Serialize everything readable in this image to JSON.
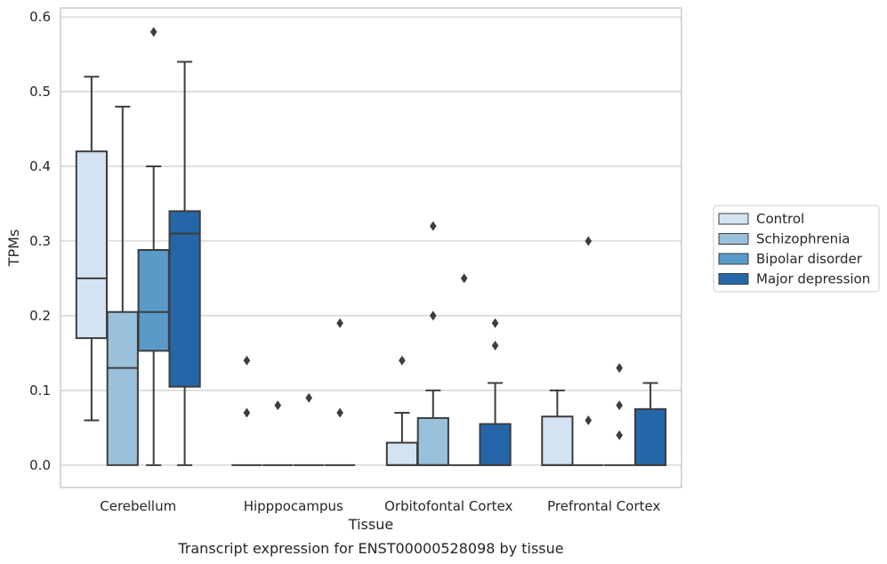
{
  "chart_data": {
    "type": "box",
    "xlabel": "Tissue",
    "ylabel": "TPMs",
    "caption": "Transcript expression for ENST00000528098 by tissue",
    "ylim": [
      -0.03,
      0.612
    ],
    "yticks": [
      "0.0",
      "0.1",
      "0.2",
      "0.3",
      "0.4",
      "0.5",
      "0.6"
    ],
    "grid": "horizontal",
    "legend_position": "right",
    "categories": [
      "Cerebellum",
      "Hipppocampus",
      "Orbitofontal Cortex",
      "Prefrontal Cortex"
    ],
    "series": [
      {
        "name": "Control",
        "color": "#d3e3f2",
        "boxes": [
          {
            "whislo": 0.06,
            "q1": 0.17,
            "med": 0.25,
            "q3": 0.42,
            "whishi": 0.52,
            "fliers": []
          },
          {
            "whislo": 0.0,
            "q1": 0.0,
            "med": 0.0,
            "q3": 0.0,
            "whishi": 0.0,
            "fliers": [
              0.07,
              0.14
            ]
          },
          {
            "whislo": 0.0,
            "q1": 0.0,
            "med": 0.0,
            "q3": 0.03,
            "whishi": 0.07,
            "fliers": [
              0.14
            ]
          },
          {
            "whislo": 0.0,
            "q1": 0.0,
            "med": 0.0,
            "q3": 0.065,
            "whishi": 0.1,
            "fliers": []
          }
        ]
      },
      {
        "name": "Schizophrenia",
        "color": "#9ac1dc",
        "boxes": [
          {
            "whislo": 0.0,
            "q1": 0.0,
            "med": 0.13,
            "q3": 0.205,
            "whishi": 0.48,
            "fliers": []
          },
          {
            "whislo": 0.0,
            "q1": 0.0,
            "med": 0.0,
            "q3": 0.0,
            "whishi": 0.0,
            "fliers": [
              0.08
            ]
          },
          {
            "whislo": 0.0,
            "q1": 0.0,
            "med": 0.0,
            "q3": 0.063,
            "whishi": 0.1,
            "fliers": [
              0.2,
              0.32
            ]
          },
          {
            "whislo": 0.0,
            "q1": 0.0,
            "med": 0.0,
            "q3": 0.0,
            "whishi": 0.0,
            "fliers": [
              0.06,
              0.3
            ]
          }
        ]
      },
      {
        "name": "Bipolar disorder",
        "color": "#5a9ac9",
        "boxes": [
          {
            "whislo": 0.0,
            "q1": 0.153,
            "med": 0.205,
            "q3": 0.288,
            "whishi": 0.4,
            "fliers": [
              0.58
            ]
          },
          {
            "whislo": 0.0,
            "q1": 0.0,
            "med": 0.0,
            "q3": 0.0,
            "whishi": 0.0,
            "fliers": [
              0.09
            ]
          },
          {
            "whislo": 0.0,
            "q1": 0.0,
            "med": 0.0,
            "q3": 0.0,
            "whishi": 0.0,
            "fliers": [
              0.25
            ]
          },
          {
            "whislo": 0.0,
            "q1": 0.0,
            "med": 0.0,
            "q3": 0.0,
            "whishi": 0.0,
            "fliers": [
              0.04,
              0.08,
              0.13
            ]
          }
        ]
      },
      {
        "name": "Major depression",
        "color": "#2566a8",
        "boxes": [
          {
            "whislo": 0.0,
            "q1": 0.105,
            "med": 0.31,
            "q3": 0.34,
            "whishi": 0.54,
            "fliers": []
          },
          {
            "whislo": 0.0,
            "q1": 0.0,
            "med": 0.0,
            "q3": 0.0,
            "whishi": 0.0,
            "fliers": [
              0.07,
              0.19
            ]
          },
          {
            "whislo": 0.0,
            "q1": 0.0,
            "med": 0.0,
            "q3": 0.055,
            "whishi": 0.11,
            "fliers": [
              0.16,
              0.19
            ]
          },
          {
            "whislo": 0.0,
            "q1": 0.0,
            "med": 0.0,
            "q3": 0.075,
            "whishi": 0.11,
            "fliers": []
          }
        ]
      }
    ]
  }
}
